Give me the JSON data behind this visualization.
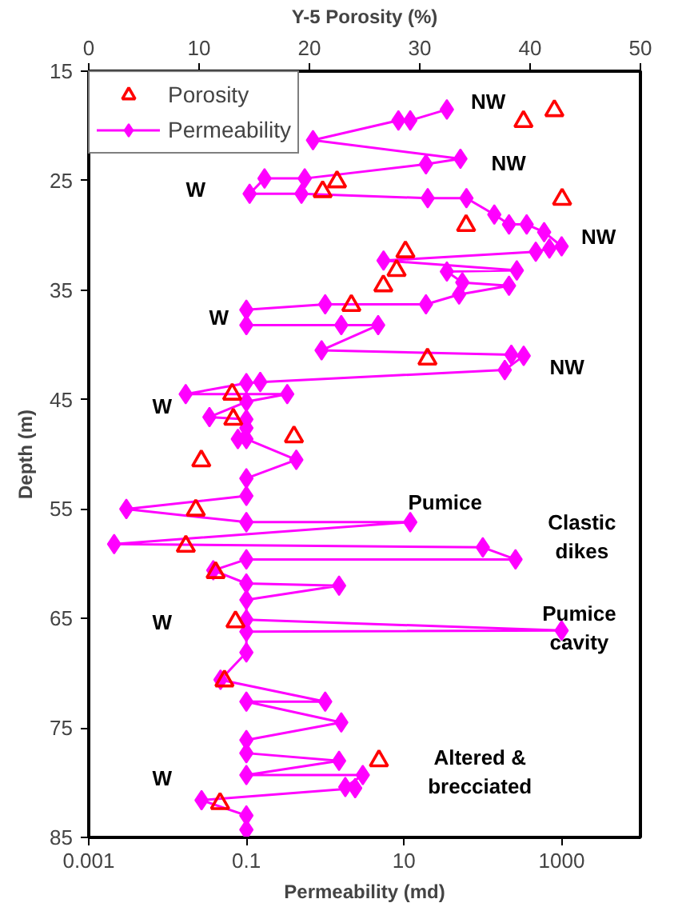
{
  "chart_data": {
    "type": "line",
    "xlabel": "Permeability (md)",
    "ylabel": "Depth (m)",
    "x2label": "Y-5 Porosity (%)",
    "log": "x",
    "xlim": [
      0.001,
      10000
    ],
    "xticks": [
      0.001,
      0.1,
      10,
      1000
    ],
    "x2lim": [
      0,
      50
    ],
    "x2ticks": [
      0,
      10,
      20,
      30,
      40,
      50
    ],
    "ylim": [
      85,
      15
    ],
    "yticks": [
      15,
      25,
      35,
      45,
      55,
      65,
      75,
      85
    ],
    "grid": false,
    "legend": "top left",
    "series": [
      {
        "name": "Porosity",
        "type": "scatter",
        "axis": "x2",
        "marker": "triangle",
        "color": "#ff0000",
        "x": [
          42.2,
          39.4,
          22.5,
          21.2,
          42.9,
          34.2,
          28.7,
          27.9,
          26.7,
          23.8,
          30.7,
          13,
          13.1,
          18.6,
          10.2,
          9.7,
          8.8,
          11.5,
          13.3,
          12.3,
          26.3,
          11.9
        ],
        "values": [
          18.6,
          19.6,
          25.1,
          26,
          26.7,
          29.1,
          31.5,
          33.2,
          34.6,
          36.4,
          41.3,
          44.5,
          46.8,
          48.4,
          50.6,
          55.1,
          58.4,
          60.8,
          65.3,
          70.7,
          78,
          81.9
        ]
      },
      {
        "name": "Permeability",
        "marker": "diamond",
        "line_style": "solid",
        "color": "#ff00ff",
        "x": [
          35,
          12,
          8.5,
          0.7,
          52,
          19,
          0.55,
          0.17,
          0.11,
          0.5,
          20,
          62,
          140,
          215,
          360,
          600,
          1000,
          700,
          470,
          5.5,
          270,
          35,
          55,
          215,
          50,
          19,
          1,
          0.1,
          0.1,
          1.6,
          4.7,
          0.9,
          230,
          330,
          190,
          0.15,
          0.1,
          0.017,
          0.33,
          0.1,
          0.034,
          0.1,
          0.1,
          0.078,
          0.1,
          0.43,
          0.1,
          0.1,
          0.003,
          0.1,
          12,
          0.0021,
          100,
          260,
          0.1,
          0.038,
          0.1,
          1.5,
          0.1,
          0.1,
          1000,
          0.1,
          0.1,
          0.047,
          1,
          0.1,
          1.6,
          0.1,
          0.1,
          1.5,
          0.1,
          3,
          1.8,
          2.4,
          0.027,
          0.1,
          0.1
        ],
        "values": [
          18.5,
          19.5,
          19.5,
          21.3,
          23,
          23.5,
          24.8,
          24.8,
          26.2,
          26.2,
          26.6,
          26.6,
          28.1,
          29,
          29,
          29.7,
          31,
          31.2,
          31.5,
          32.3,
          33.2,
          33.3,
          34.3,
          34.6,
          35.4,
          36.3,
          36.3,
          36.8,
          38.2,
          38.2,
          38.2,
          40.5,
          40.9,
          41,
          42.3,
          43.4,
          43.5,
          44.5,
          44.5,
          45.2,
          46.6,
          46.8,
          47.6,
          48.6,
          48.6,
          50.5,
          52.2,
          53.8,
          55,
          56.2,
          56.2,
          58.2,
          58.5,
          59.6,
          59.6,
          60.6,
          61.8,
          62,
          63.3,
          65.1,
          66.1,
          66.2,
          68.1,
          70.6,
          72.6,
          72.6,
          74.5,
          76.1,
          77.3,
          78,
          79.3,
          79.3,
          80.4,
          80.5,
          81.6,
          83,
          84.3
        ]
      }
    ],
    "annotations": [
      "NW",
      "NW",
      "W",
      "NW",
      "W",
      "NW",
      "W",
      "Pumice",
      "Clastic\ndikes",
      "Pumice\ncavity",
      "W",
      "Altered &\nbrecciated",
      "W"
    ]
  }
}
